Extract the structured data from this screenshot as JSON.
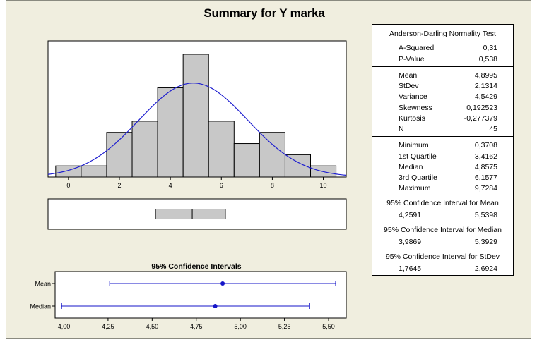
{
  "title": "Summary for Y marka",
  "colors": {
    "bar_fill": "#c8c8c8",
    "curve": "#2020d0",
    "panel_bg": "#f0eedf",
    "ci_color": "#1515c8"
  },
  "chart_data": [
    {
      "type": "bar",
      "name": "histogram",
      "bin_edges": [
        -0.5,
        0.5,
        1.5,
        2.5,
        3.5,
        4.5,
        5.5,
        6.5,
        7.5,
        8.5,
        9.5,
        10.5
      ],
      "values": [
        1,
        1,
        4,
        5,
        8,
        11,
        5,
        3,
        4,
        2,
        1
      ],
      "xlim": [
        -0.8,
        10.9
      ],
      "xticks": [
        0,
        2,
        4,
        6,
        8,
        10
      ],
      "tick_labels": [
        "0",
        "2",
        "4",
        "6",
        "8",
        "10"
      ],
      "normal_curve": {
        "mean": 4.8995,
        "stdev": 2.1314,
        "n": 45,
        "bin_width": 1
      }
    },
    {
      "type": "boxplot",
      "name": "boxplot",
      "min": 0.3708,
      "q1": 3.4162,
      "median": 4.8575,
      "q3": 6.1577,
      "max": 9.7284,
      "xlim": [
        -0.8,
        10.9
      ]
    },
    {
      "type": "interval",
      "name": "confidence-intervals",
      "title": "95% Confidence Intervals",
      "xlim": [
        3.95,
        5.6
      ],
      "xticks": [
        4.0,
        4.25,
        4.5,
        4.75,
        5.0,
        5.25,
        5.5
      ],
      "tick_labels": [
        "4,00",
        "4,25",
        "4,50",
        "4,75",
        "5,00",
        "5,25",
        "5,50"
      ],
      "series": [
        {
          "name": "Mean",
          "center": 4.8995,
          "low": 4.2591,
          "high": 5.5398
        },
        {
          "name": "Median",
          "center": 4.8575,
          "low": 3.9869,
          "high": 5.3929
        }
      ]
    }
  ],
  "stats": {
    "ad_title": "Anderson-Darling Normality Test",
    "ad": [
      {
        "label": "A-Squared",
        "value": "0,31"
      },
      {
        "label": "P-Value",
        "value": "0,538"
      }
    ],
    "moments": [
      {
        "label": "Mean",
        "value": "4,8995"
      },
      {
        "label": "StDev",
        "value": "2,1314"
      },
      {
        "label": "Variance",
        "value": "4,5429"
      },
      {
        "label": "Skewness",
        "value": "0,192523"
      },
      {
        "label": "Kurtosis",
        "value": "-0,277379"
      },
      {
        "label": "N",
        "value": "45"
      }
    ],
    "quartiles": [
      {
        "label": "Minimum",
        "value": "0,3708"
      },
      {
        "label": "1st Quartile",
        "value": "3,4162"
      },
      {
        "label": "Median",
        "value": "4,8575"
      },
      {
        "label": "3rd Quartile",
        "value": "6,1577"
      },
      {
        "label": "Maximum",
        "value": "9,7284"
      }
    ],
    "ci_mean_title": "95% Confidence Interval for Mean",
    "ci_mean": {
      "low": "4,2591",
      "high": "5,5398"
    },
    "ci_median_title": "95% Confidence Interval for Median",
    "ci_median": {
      "low": "3,9869",
      "high": "5,3929"
    },
    "ci_stdev_title": "95% Confidence Interval for StDev",
    "ci_stdev": {
      "low": "1,7645",
      "high": "2,6924"
    }
  }
}
